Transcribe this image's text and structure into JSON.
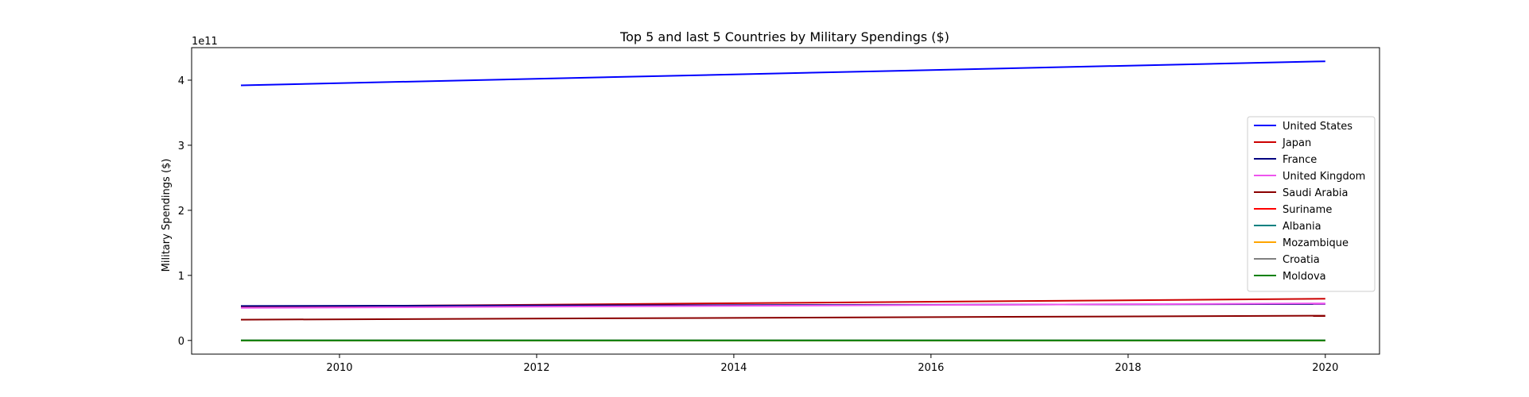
{
  "chart_data": {
    "type": "line",
    "title": "Top 5 and last 5 Countries by Military Spendings ($)",
    "xlabel": "",
    "ylabel": "Military Spendings ($)",
    "y_offset_label": "1e11",
    "xlim": [
      2008.5,
      2020.55
    ],
    "ylim": [
      -0.21,
      4.5
    ],
    "y_unit_multiplier": 100000000000,
    "x_ticks": [
      2010,
      2012,
      2014,
      2016,
      2018,
      2020
    ],
    "y_ticks": [
      0,
      1,
      2,
      3,
      4
    ],
    "grid": false,
    "legend_position": "center-right",
    "x": [
      2009,
      2020
    ],
    "series": [
      {
        "name": "United States",
        "color": "#0000ff",
        "values": [
          3.92,
          4.29
        ]
      },
      {
        "name": "Japan",
        "color": "#cc0000",
        "values": [
          0.515,
          0.64
        ]
      },
      {
        "name": "France",
        "color": "#000080",
        "values": [
          0.53,
          0.56
        ]
      },
      {
        "name": "United Kingdom",
        "color": "#ee55ee",
        "values": [
          0.5,
          0.57
        ]
      },
      {
        "name": "Saudi Arabia",
        "color": "#8b0000",
        "values": [
          0.32,
          0.38
        ]
      },
      {
        "name": "Suriname",
        "color": "#ff0000",
        "values": [
          0.001,
          0.001
        ]
      },
      {
        "name": "Albania",
        "color": "#008080",
        "values": [
          0.002,
          0.002
        ]
      },
      {
        "name": "Mozambique",
        "color": "#ffa500",
        "values": [
          0.001,
          0.001
        ]
      },
      {
        "name": "Croatia",
        "color": "#808080",
        "values": [
          0.003,
          0.003
        ]
      },
      {
        "name": "Moldova",
        "color": "#008000",
        "values": [
          0.0005,
          0.0005
        ]
      }
    ]
  }
}
